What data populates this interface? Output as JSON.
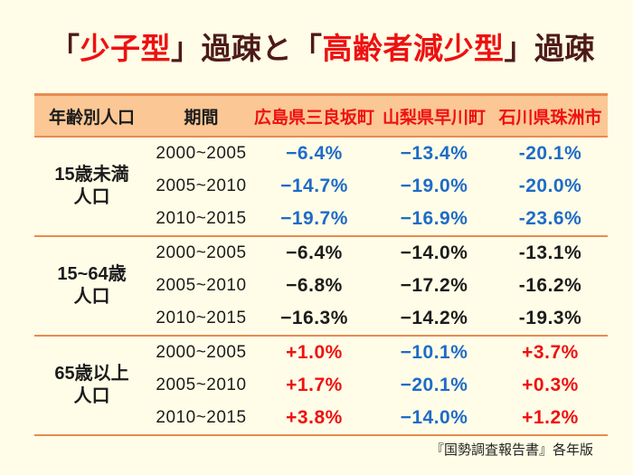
{
  "title": {
    "seg0": "「",
    "seg1": "少子型",
    "seg2": "」過疎と「",
    "seg3": "高齢者減少型",
    "seg4": "」過疎"
  },
  "colors": {
    "background": "#fffde7",
    "title_dark": "#4d1a1a",
    "accent_red": "#ee1111",
    "value_blue": "#1e6bc8",
    "value_black": "#1c1c1c",
    "header_bg": "#fbc795",
    "line_orange": "#e98b50"
  },
  "table": {
    "headers": [
      "年齢別人口",
      "期間",
      "広島県三良坂町",
      "山梨県早川町",
      "石川県珠洲市"
    ],
    "groups": [
      {
        "label_line1": "15歳未満",
        "label_line2": "人口",
        "rows": [
          {
            "period": "2000~2005",
            "cells": [
              {
                "text": "−6.4%",
                "color": "blue"
              },
              {
                "text": "−13.4%",
                "color": "blue"
              },
              {
                "text": "-20.1%",
                "color": "blue"
              }
            ]
          },
          {
            "period": "2005~2010",
            "cells": [
              {
                "text": "−14.7%",
                "color": "blue"
              },
              {
                "text": "−19.0%",
                "color": "blue"
              },
              {
                "text": "-20.0%",
                "color": "blue"
              }
            ]
          },
          {
            "period": "2010~2015",
            "cells": [
              {
                "text": "−19.7%",
                "color": "blue"
              },
              {
                "text": "−16.9%",
                "color": "blue"
              },
              {
                "text": "-23.6%",
                "color": "blue"
              }
            ]
          }
        ]
      },
      {
        "label_line1": "15~64歳",
        "label_line2": "人口",
        "rows": [
          {
            "period": "2000~2005",
            "cells": [
              {
                "text": "−6.4%",
                "color": "black"
              },
              {
                "text": "−14.0%",
                "color": "black"
              },
              {
                "text": "-13.1%",
                "color": "black"
              }
            ]
          },
          {
            "period": "2005~2010",
            "cells": [
              {
                "text": "−6.8%",
                "color": "black"
              },
              {
                "text": "−17.2%",
                "color": "black"
              },
              {
                "text": "-16.2%",
                "color": "black"
              }
            ]
          },
          {
            "period": "2010~2015",
            "cells": [
              {
                "text": "−16.3%",
                "color": "black"
              },
              {
                "text": "−14.2%",
                "color": "black"
              },
              {
                "text": "-19.3%",
                "color": "black"
              }
            ]
          }
        ]
      },
      {
        "label_line1": "65歳以上",
        "label_line2": "人口",
        "rows": [
          {
            "period": "2000~2005",
            "cells": [
              {
                "text": "+1.0%",
                "color": "red"
              },
              {
                "text": "−10.1%",
                "color": "blue"
              },
              {
                "text": "+3.7%",
                "color": "red"
              }
            ]
          },
          {
            "period": "2005~2010",
            "cells": [
              {
                "text": "+1.7%",
                "color": "red"
              },
              {
                "text": "−20.1%",
                "color": "blue"
              },
              {
                "text": "+0.3%",
                "color": "red"
              }
            ]
          },
          {
            "period": "2010~2015",
            "cells": [
              {
                "text": "+3.8%",
                "color": "red"
              },
              {
                "text": "−14.0%",
                "color": "blue"
              },
              {
                "text": "+1.2%",
                "color": "red"
              }
            ]
          }
        ]
      }
    ]
  },
  "footer": {
    "source": "『国勢調査報告書』各年版"
  },
  "chart_data": {
    "type": "table",
    "title": "「少子型」過疎と「高齢者減少型」過疎",
    "columns": [
      "年齢別人口",
      "期間",
      "広島県三良坂町",
      "山梨県早川町",
      "石川県珠洲市"
    ],
    "units": "%",
    "rows": [
      [
        "15歳未満人口",
        "2000~2005",
        -6.4,
        -13.4,
        -20.1
      ],
      [
        "15歳未満人口",
        "2005~2010",
        -14.7,
        -19.0,
        -20.0
      ],
      [
        "15歳未満人口",
        "2010~2015",
        -19.7,
        -16.9,
        -23.6
      ],
      [
        "15~64歳人口",
        "2000~2005",
        -6.4,
        -14.0,
        -13.1
      ],
      [
        "15~64歳人口",
        "2005~2010",
        -6.8,
        -17.2,
        -16.2
      ],
      [
        "15~64歳人口",
        "2010~2015",
        -16.3,
        -14.2,
        -19.3
      ],
      [
        "65歳以上人口",
        "2000~2005",
        1.0,
        -10.1,
        3.7
      ],
      [
        "65歳以上人口",
        "2005~2010",
        1.7,
        -20.1,
        0.3
      ],
      [
        "65歳以上人口",
        "2010~2015",
        3.8,
        -14.0,
        1.2
      ],
      [
        "source",
        "『国勢調査報告書』各年版",
        null,
        null,
        null
      ]
    ],
    "legend_note": "blue = 減少 (decline), red = 増加 (increase)"
  }
}
